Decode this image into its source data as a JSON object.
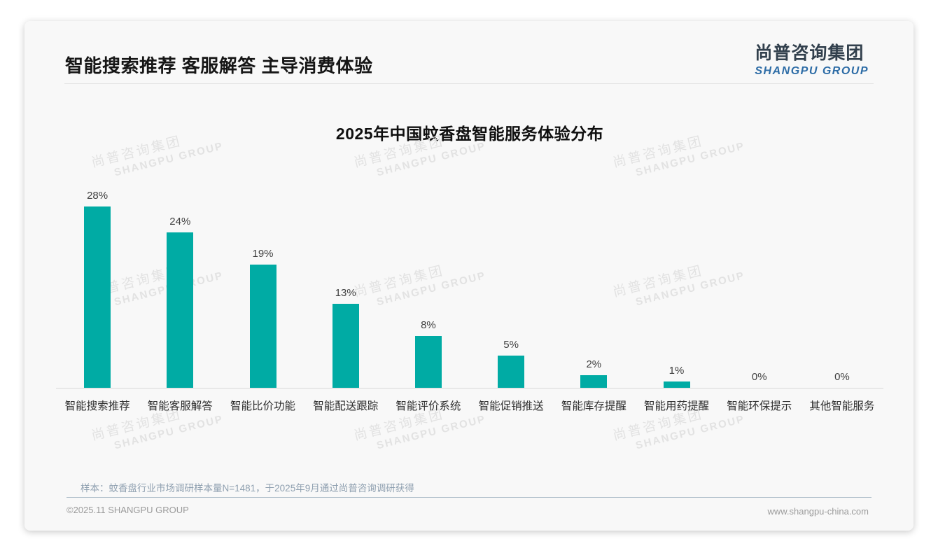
{
  "page": {
    "title": "智能搜索推荐 客服解答 主导消费体验",
    "logo": {
      "cn": "尚普咨询集团",
      "en": "SHANGPU GROUP"
    },
    "note": "样本：蚊香盘行业市场调研样本量N=1481，于2025年9月通过尚普咨询调研获得",
    "footer_left": "©2025.11 SHANGPU GROUP",
    "footer_right": "www.shangpu-china.com",
    "watermark": {
      "line1": "尚普咨询集团",
      "line2": "SHANGPU GROUP"
    }
  },
  "colors": {
    "bar": "#00aba4",
    "logo_cn": "#32404d",
    "logo_en": "#2d6ca6",
    "note_text": "#8fa0b0"
  },
  "chart_data": {
    "type": "bar",
    "title": "2025年中国蚊香盘智能服务体验分布",
    "categories": [
      "智能搜索推荐",
      "智能客服解答",
      "智能比价功能",
      "智能配送跟踪",
      "智能评价系统",
      "智能促销推送",
      "智能库存提醒",
      "智能用药提醒",
      "智能环保提示",
      "其他智能服务"
    ],
    "values": [
      28,
      24,
      19,
      13,
      8,
      5,
      2,
      1,
      0,
      0
    ],
    "unit": "%",
    "value_labels": true,
    "bar_color": "#00aba4",
    "xlabel": "",
    "ylabel": "",
    "ylim": [
      0,
      30
    ],
    "grid": false,
    "legend": false
  }
}
